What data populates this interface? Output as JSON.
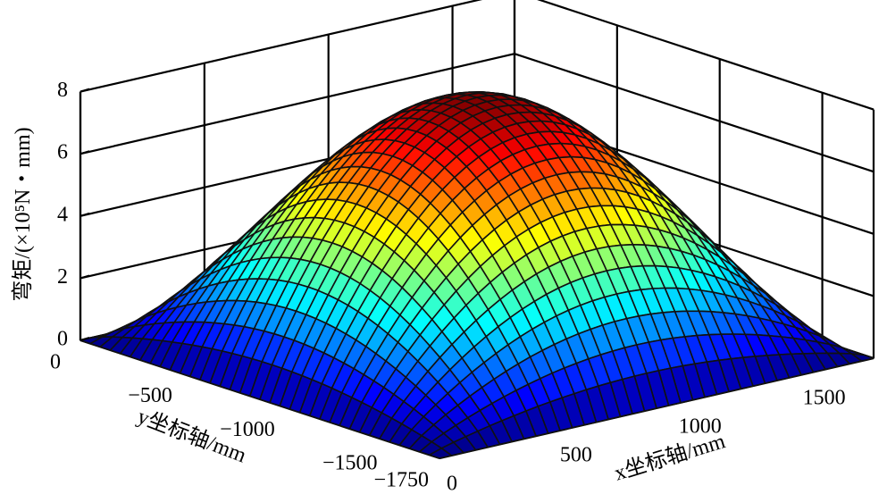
{
  "chart_data": {
    "type": "surface",
    "title": "",
    "xlabel": "x坐标轴/mm",
    "ylabel": "y坐标轴/mm",
    "zlabel": "弯矩/(×10⁵N・mm)",
    "xlim": [
      0,
      1750
    ],
    "ylim": [
      -1750,
      0
    ],
    "zlim": [
      0,
      8
    ],
    "x_ticks": [
      "0",
      "500",
      "1000",
      "1500"
    ],
    "y_ticks": [
      "0",
      "−500",
      "−1000",
      "−1500",
      "−1750"
    ],
    "z_ticks": [
      "0",
      "2",
      "4",
      "6",
      "8"
    ],
    "x_tick_values": [
      0,
      500,
      1000,
      1500
    ],
    "y_tick_values": [
      0,
      -500,
      -1000,
      -1500,
      -1750
    ],
    "z_tick_values": [
      0,
      2,
      4,
      6,
      8
    ],
    "grid": true,
    "colormap": "jet",
    "mesh_n": 36,
    "surface_model": "peak ≈ 8.1 at center (875, -875), tapering to 0 at all four edges",
    "peak_value": 8.1,
    "colors": {
      "edge": "#111111",
      "background": "#ffffff"
    }
  }
}
